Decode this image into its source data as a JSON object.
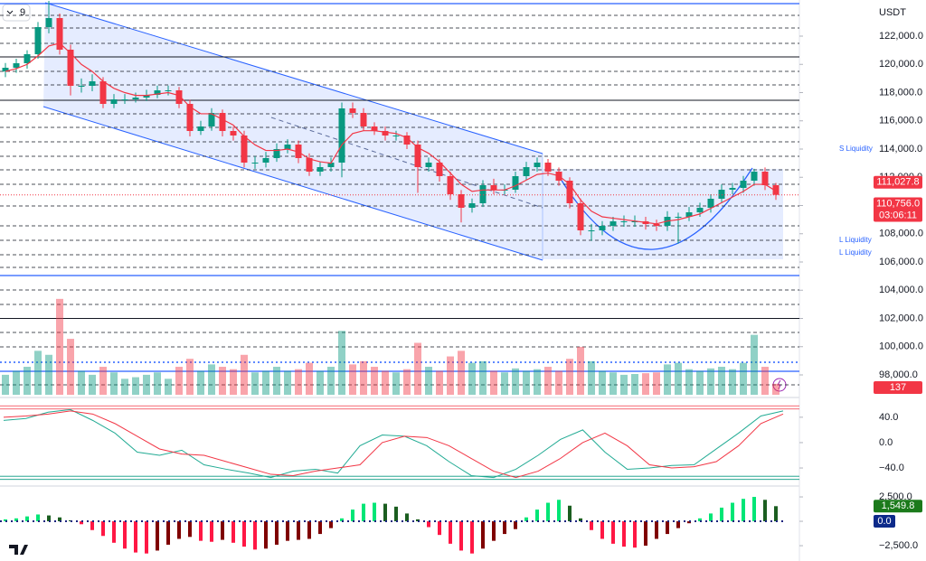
{
  "chart_data": {
    "type": "candlestick",
    "currency": "USDT",
    "indicator_count": 9,
    "price_ylim": [
      96400,
      124560
    ],
    "price_yticks": [
      {
        "value": 98000,
        "label": "98,000.0"
      },
      {
        "value": 100000,
        "label": "100,000.0"
      },
      {
        "value": 102000,
        "label": "102,000.0"
      },
      {
        "value": 104000,
        "label": "104,000.0"
      },
      {
        "value": 106000,
        "label": "106,000.0"
      },
      {
        "value": 108000,
        "label": "108,000.0"
      },
      {
        "value": 110000,
        "label": "110,000.0"
      },
      {
        "value": 112000,
        "label": "112,000.0"
      },
      {
        "value": 114000,
        "label": "114,000.0"
      },
      {
        "value": 116000,
        "label": "116,000.0"
      },
      {
        "value": 118000,
        "label": "118,000.0"
      },
      {
        "value": 120000,
        "label": "120,000.0"
      },
      {
        "value": 122000,
        "label": "122,000.0"
      }
    ],
    "levels": {
      "dashed": [
        123472,
        122576,
        121488,
        119504,
        118544,
        116496,
        115536,
        114512,
        113488,
        112528,
        111504,
        109968,
        108560,
        107536,
        106512,
        105616,
        104016,
        102992,
        101008,
        99984,
        97296
      ],
      "solid": [
        120528,
        117456,
        102000
      ],
      "blue": [
        124304,
        105040,
        98256
      ],
      "blue_dotted": [
        98896
      ]
    },
    "up_color": "#089981",
    "down_color": "#f23645",
    "ohlc": [
      [
        119500,
        120100,
        119100,
        119760
      ],
      [
        119760,
        120400,
        119400,
        120080
      ],
      [
        120080,
        121000,
        119700,
        120720
      ],
      [
        120720,
        123000,
        120400,
        122640
      ],
      [
        122640,
        124500,
        122200,
        123280
      ],
      [
        123280,
        123600,
        120700,
        121040
      ],
      [
        121040,
        121400,
        117800,
        118480
      ],
      [
        118480,
        119000,
        118000,
        118480
      ],
      [
        118480,
        119300,
        118100,
        118800
      ],
      [
        118800,
        119100,
        116900,
        117200
      ],
      [
        117200,
        117900,
        116900,
        117520
      ],
      [
        117520,
        117900,
        117200,
        117520
      ],
      [
        117520,
        118000,
        117300,
        117648
      ],
      [
        117648,
        118200,
        117400,
        117840
      ],
      [
        117840,
        118500,
        117600,
        118160
      ],
      [
        118160,
        118500,
        117800,
        118160
      ],
      [
        118160,
        118400,
        116900,
        117200
      ],
      [
        117200,
        117500,
        114900,
        115280
      ],
      [
        115280,
        116000,
        115000,
        115600
      ],
      [
        115600,
        116900,
        115300,
        116560
      ],
      [
        116560,
        116800,
        114900,
        115280
      ],
      [
        115280,
        115600,
        114600,
        114960
      ],
      [
        114960,
        115300,
        112700,
        113040
      ],
      [
        113040,
        113500,
        112600,
        113040
      ],
      [
        113040,
        113800,
        112700,
        113360
      ],
      [
        113360,
        114400,
        113100,
        114000
      ],
      [
        114000,
        114700,
        113700,
        114320
      ],
      [
        114320,
        114600,
        113000,
        113360
      ],
      [
        113360,
        113700,
        112100,
        112400
      ],
      [
        112400,
        113100,
        112100,
        112720
      ],
      [
        112720,
        113400,
        112400,
        113040
      ],
      [
        113040,
        117300,
        112000,
        116880
      ],
      [
        116880,
        117300,
        116200,
        116560
      ],
      [
        116560,
        116900,
        115300,
        115600
      ],
      [
        115600,
        115900,
        115000,
        115280
      ],
      [
        115280,
        115600,
        114600,
        114960
      ],
      [
        114960,
        115300,
        114600,
        114960
      ],
      [
        114960,
        115200,
        114000,
        114320
      ],
      [
        114320,
        114600,
        110900,
        112720
      ],
      [
        112720,
        113400,
        112400,
        113040
      ],
      [
        113040,
        113300,
        111700,
        112080
      ],
      [
        112080,
        112400,
        110400,
        110800
      ],
      [
        110800,
        111100,
        108800,
        109840
      ],
      [
        109840,
        110500,
        109500,
        110160
      ],
      [
        110160,
        111800,
        109900,
        111440
      ],
      [
        111440,
        111900,
        110800,
        111120
      ],
      [
        111120,
        111500,
        110800,
        111120
      ],
      [
        111120,
        112400,
        110900,
        112080
      ],
      [
        112080,
        113100,
        111800,
        112720
      ],
      [
        112720,
        113400,
        112400,
        113040
      ],
      [
        113040,
        113300,
        112100,
        112400
      ],
      [
        112400,
        112700,
        111400,
        111760
      ],
      [
        111760,
        112000,
        109800,
        110160
      ],
      [
        110160,
        110500,
        107900,
        108240
      ],
      [
        108240,
        108700,
        107500,
        108240
      ],
      [
        108240,
        108900,
        107900,
        108560
      ],
      [
        108560,
        109200,
        108200,
        108880
      ],
      [
        108880,
        109300,
        108500,
        108880
      ],
      [
        108880,
        109300,
        108500,
        108880
      ],
      [
        108880,
        109200,
        108300,
        108688
      ],
      [
        108688,
        109000,
        108200,
        108560
      ],
      [
        108560,
        109600,
        108200,
        109200
      ],
      [
        109200,
        109500,
        107300,
        109200
      ],
      [
        109200,
        109900,
        108900,
        109520
      ],
      [
        109520,
        110200,
        109200,
        109840
      ],
      [
        109840,
        110800,
        109500,
        110480
      ],
      [
        110480,
        111500,
        110200,
        111120
      ],
      [
        111120,
        111600,
        110800,
        111248
      ],
      [
        111248,
        112100,
        110900,
        111760
      ],
      [
        111760,
        112600,
        111400,
        112400
      ],
      [
        112400,
        112700,
        111100,
        111440
      ],
      [
        111440,
        111600,
        110400,
        110756
      ]
    ],
    "last_price": {
      "value": 110756,
      "label": "110,756.0"
    },
    "countdown": "03:06:11",
    "ma": {
      "color": "#f23645",
      "last_label": "111,027.8",
      "values": [
        119500,
        119700,
        120000,
        120600,
        121300,
        121500,
        120800,
        120000,
        119500,
        118800,
        118300,
        118000,
        117800,
        117800,
        117900,
        118000,
        117800,
        117000,
        116500,
        116500,
        116100,
        115700,
        114900,
        114300,
        113900,
        113900,
        114000,
        113800,
        113300,
        113100,
        113000,
        114300,
        115100,
        115300,
        115300,
        115200,
        115100,
        114800,
        114100,
        113700,
        113100,
        112300,
        111500,
        111000,
        111100,
        111100,
        111100,
        111400,
        111800,
        112200,
        112300,
        112100,
        111500,
        110400,
        109600,
        109200,
        109100,
        109000,
        108900,
        108800,
        108700,
        108900,
        109000,
        109200,
        109400,
        109800,
        110200,
        110600,
        111000,
        111500,
        111500,
        111027.8
      ]
    },
    "volume_ylim": [
      0,
      1300
    ],
    "volume": [
      250,
      300,
      350,
      550,
      500,
      1200,
      700,
      300,
      250,
      350,
      280,
      200,
      220,
      250,
      280,
      200,
      350,
      450,
      300,
      380,
      350,
      320,
      500,
      280,
      300,
      350,
      300,
      320,
      400,
      300,
      350,
      800,
      380,
      420,
      350,
      300,
      280,
      320,
      650,
      350,
      300,
      480,
      550,
      400,
      420,
      300,
      280,
      330,
      300,
      320,
      350,
      300,
      450,
      600,
      420,
      300,
      280,
      250,
      260,
      270,
      280,
      380,
      400,
      320,
      300,
      330,
      350,
      320,
      400,
      750,
      350,
      137
    ],
    "annotations": [
      "S Liquidity",
      "L Liquidity",
      "L Liquidity"
    ],
    "oscillator": {
      "ylim": [
        -67,
        64
      ],
      "yticks": [
        {
          "value": 40,
          "label": "40.0"
        },
        {
          "value": 0,
          "label": "0.0"
        },
        {
          "value": -40,
          "label": "−40.0"
        }
      ],
      "upper": [
        58,
        53
      ],
      "upper_color": "#f23645",
      "lower": [
        -53,
        -58
      ],
      "lower_color": "#089981",
      "series": [
        {
          "color": "#22ab94",
          "values": [
            35,
            38,
            48,
            52,
            35,
            15,
            -15,
            -20,
            -12,
            -35,
            -42,
            -48,
            -55,
            -45,
            -42,
            -48,
            -5,
            12,
            10,
            -5,
            -30,
            -52,
            -55,
            -42,
            -20,
            5,
            20,
            -15,
            -42,
            -40,
            -36,
            -35,
            -10,
            15,
            42,
            50
          ]
        },
        {
          "color": "#f23645",
          "values": [
            40,
            42,
            45,
            50,
            45,
            30,
            10,
            -10,
            -18,
            -20,
            -30,
            -40,
            -50,
            -52,
            -45,
            -40,
            -35,
            0,
            10,
            8,
            -5,
            -25,
            -45,
            -55,
            -45,
            -25,
            0,
            15,
            -5,
            -35,
            -40,
            -38,
            -30,
            -5,
            30,
            45
          ]
        }
      ]
    },
    "macd": {
      "ylim": [
        -4070,
        3430
      ],
      "yticks": [
        {
          "value": 2500,
          "label": "2,500.0"
        },
        {
          "value": 0,
          "label": "0.0"
        },
        {
          "value": -2500,
          "label": "−2,500.0"
        }
      ],
      "values": [
        200,
        300,
        500,
        700,
        600,
        400,
        100,
        -300,
        -900,
        -1500,
        -2200,
        -2800,
        -3200,
        -3300,
        -3000,
        -2400,
        -1800,
        -1600,
        -2000,
        -2100,
        -1900,
        -2200,
        -2600,
        -2900,
        -2800,
        -2400,
        -2000,
        -1900,
        -1800,
        -1300,
        -700,
        300,
        1200,
        1800,
        1900,
        1800,
        1500,
        800,
        200,
        -600,
        -1400,
        -2300,
        -3000,
        -3300,
        -2800,
        -2000,
        -1300,
        -800,
        400,
        1200,
        1900,
        2200,
        1600,
        300,
        -900,
        -1800,
        -2300,
        -2600,
        -2700,
        -2500,
        -1800,
        -1300,
        -700,
        -200,
        300,
        800,
        1400,
        1900,
        2300,
        2500,
        2200,
        1549.8
      ],
      "last_label": "1,549.8",
      "signal": {
        "value": 0,
        "label": "0.0"
      }
    }
  }
}
